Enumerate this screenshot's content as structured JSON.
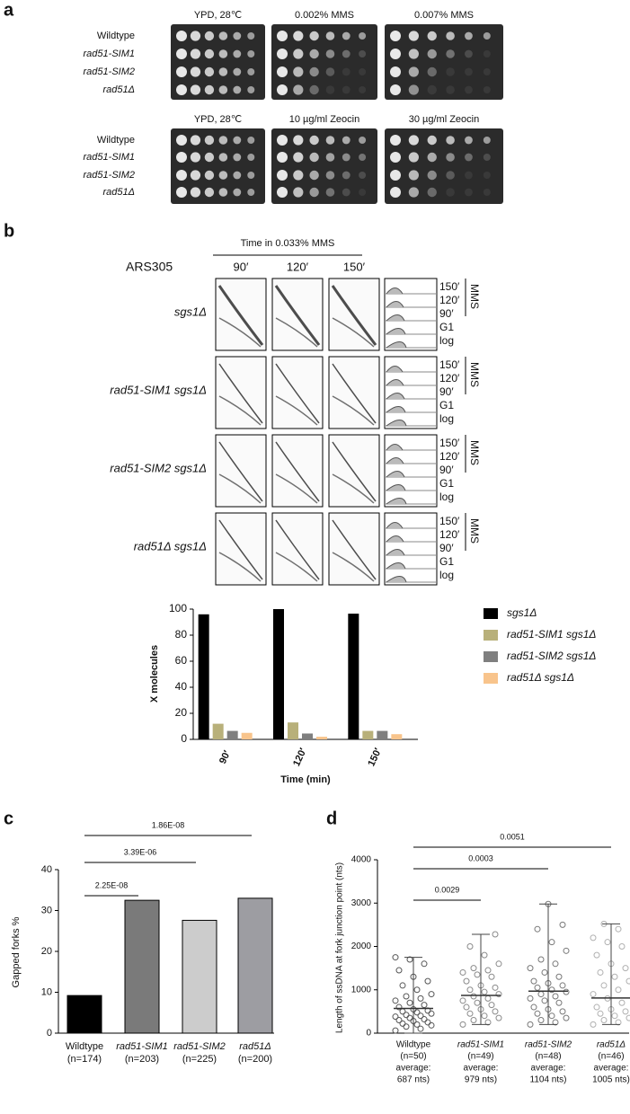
{
  "panel_a": {
    "label": "a",
    "rows": [
      "Wildtype",
      "rad51-SIM1",
      "rad51-SIM2",
      "rad51Δ"
    ],
    "plates_top": [
      "YPD, 28℃",
      "0.002% MMS",
      "0.007% MMS"
    ],
    "plates_bottom": [
      "YPD, 28℃",
      "10 µg/ml Zeocin",
      "30 µg/ml Zeocin"
    ]
  },
  "panel_b": {
    "label": "b",
    "header": "Time in 0.033% MMS",
    "locus": "ARS305",
    "times": [
      "90′",
      "120′",
      "150′"
    ],
    "strains": [
      "sgs1Δ",
      "rad51-SIM1 sgs1Δ",
      "rad51-SIM2 sgs1Δ",
      "rad51Δ sgs1Δ"
    ],
    "facs_labels": [
      "150′",
      "120′",
      "90′",
      "G1",
      "log"
    ],
    "facs_group": "MMS"
  },
  "panel_c": {
    "label": "c"
  },
  "panel_d": {
    "label": "d"
  },
  "chart_data": [
    {
      "type": "grouped_bar",
      "categories": [
        "90′",
        "120′",
        "150′"
      ],
      "series": [
        {
          "name": "sgs1Δ",
          "color": "#000000",
          "values": [
            96,
            100,
            96.5
          ]
        },
        {
          "name": "rad51-SIM1 sgs1Δ",
          "color": "#b8b07a",
          "values": [
            12,
            13,
            6.5
          ]
        },
        {
          "name": "rad51-SIM2 sgs1Δ",
          "color": "#7f7f7f",
          "values": [
            6.5,
            4.5,
            6.5
          ]
        },
        {
          "name": "rad51Δ sgs1Δ",
          "color": "#f8c48c",
          "values": [
            5,
            2,
            4
          ]
        }
      ],
      "ylim": [
        0,
        100
      ],
      "yticks": [
        0,
        20,
        40,
        60,
        80,
        100
      ],
      "ylabel": "X molecules",
      "xlabel": "Time (min)"
    },
    {
      "type": "bar",
      "categories": [
        "Wildtype",
        "rad51-SIM1",
        "rad51-SIM2",
        "rad51Δ"
      ],
      "category_notes": [
        "(n=174)",
        "(n=203)",
        "(n=225)",
        "(n=200)"
      ],
      "values": [
        9.2,
        32.5,
        27.6,
        33
      ],
      "colors": [
        "#000000",
        "#7a7a7a",
        "#cccccc",
        "#9d9da2"
      ],
      "ylim": [
        0,
        40
      ],
      "yticks": [
        0,
        10,
        20,
        30,
        40
      ],
      "ylabel": "Gapped forks %",
      "annotations": [
        "2.25E-08",
        "3.39E-06",
        "1.86E-08"
      ]
    },
    {
      "type": "dot_plot",
      "categories": [
        "Wildtype",
        "rad51-SIM1",
        "rad51-SIM2",
        "rad51Δ"
      ],
      "category_notes": [
        [
          "(n=50)",
          "average:",
          "687 nts)"
        ],
        [
          "(n=49)",
          "average:",
          "979 nts)"
        ],
        [
          "(n=48)",
          "average:",
          "1104 nts)"
        ],
        [
          "(n=46)",
          "average:",
          "1005 nts)"
        ]
      ],
      "values": [
        [
          60,
          100,
          150,
          180,
          200,
          220,
          250,
          280,
          300,
          320,
          350,
          380,
          400,
          420,
          450,
          480,
          500,
          520,
          550,
          600,
          650,
          700,
          750,
          800,
          850,
          900,
          1000,
          1100,
          1200,
          1300,
          1450,
          1600,
          1700,
          1750
        ],
        [
          200,
          250,
          300,
          350,
          400,
          450,
          500,
          550,
          600,
          650,
          700,
          750,
          800,
          850,
          900,
          950,
          1000,
          1050,
          1100,
          1200,
          1300,
          1350,
          1400,
          1450,
          1500,
          1600,
          1800,
          2000,
          2280
        ],
        [
          200,
          250,
          300,
          350,
          400,
          450,
          500,
          550,
          600,
          700,
          750,
          800,
          850,
          900,
          950,
          1000,
          1050,
          1100,
          1150,
          1200,
          1300,
          1400,
          1500,
          1600,
          1700,
          1900,
          2100,
          2400,
          2500,
          2980
        ],
        [
          200,
          250,
          300,
          350,
          400,
          450,
          500,
          550,
          600,
          700,
          800,
          900,
          1000,
          1100,
          1200,
          1300,
          1400,
          1500,
          1600,
          1800,
          2000,
          2100,
          2200,
          2400,
          2520
        ]
      ],
      "centers": [
        570,
        870,
        970,
        810
      ],
      "whisker_low": [
        0,
        200,
        200,
        200
      ],
      "whisker_high": [
        1750,
        2280,
        2980,
        2520
      ],
      "colors": [
        "#555555",
        "#8a8a8a",
        "#777777",
        "#b0b0b0"
      ],
      "ylim": [
        0,
        4000
      ],
      "yticks": [
        0,
        1000,
        2000,
        3000,
        4000
      ],
      "ylabel": "Length of ssDNA at fork junction point (nts)",
      "annotations": [
        "0.0029",
        "0.0003",
        "0.0051"
      ]
    }
  ]
}
